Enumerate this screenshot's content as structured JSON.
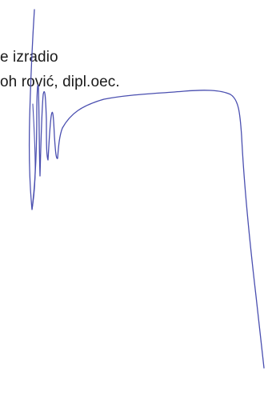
{
  "document": {
    "lines": [
      "e izradio",
      "oh rović, dipl.oec."
    ]
  },
  "signature": {
    "ink_color": "#4a4fb0"
  }
}
